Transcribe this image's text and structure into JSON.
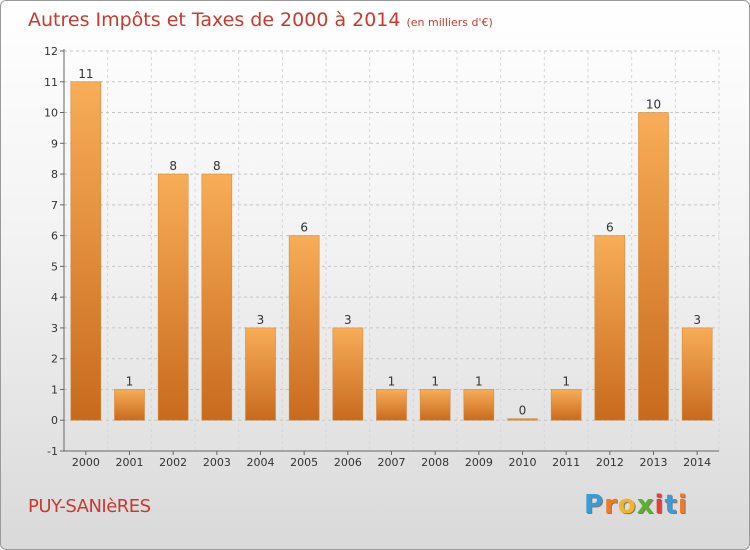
{
  "title": "Autres Impôts et Taxes de 2000 à 2014",
  "subtitle": "(en milliers d'€)",
  "commune": "PUY-SANIèRES",
  "logo": {
    "letters": [
      "P",
      "r",
      "o",
      "x",
      "i",
      "t",
      "i"
    ],
    "colors": [
      "#3a9bd5",
      "#f07c22",
      "#f0b52a",
      "#5ab030",
      "#e0403a",
      "#3a9bd5",
      "#f07c22"
    ]
  },
  "colors": {
    "bar_light": "#f8ad58",
    "bar_dark": "#c86a1e",
    "title": "#c83a2e"
  },
  "chart_data": {
    "type": "bar",
    "title": "Autres Impôts et Taxes de 2000 à 2014",
    "subtitle": "(en milliers d'€)",
    "categories": [
      "2000",
      "2001",
      "2002",
      "2003",
      "2004",
      "2005",
      "2006",
      "2007",
      "2008",
      "2009",
      "2010",
      "2011",
      "2012",
      "2013",
      "2014"
    ],
    "values": [
      11,
      1,
      8,
      8,
      3,
      6,
      3,
      1,
      1,
      1,
      0,
      1,
      6,
      10,
      3
    ],
    "ylim": [
      -1,
      12
    ],
    "yticks": [
      -1,
      0,
      1,
      2,
      3,
      4,
      5,
      6,
      7,
      8,
      9,
      10,
      11,
      12
    ],
    "grid": "horizontal dashed"
  }
}
